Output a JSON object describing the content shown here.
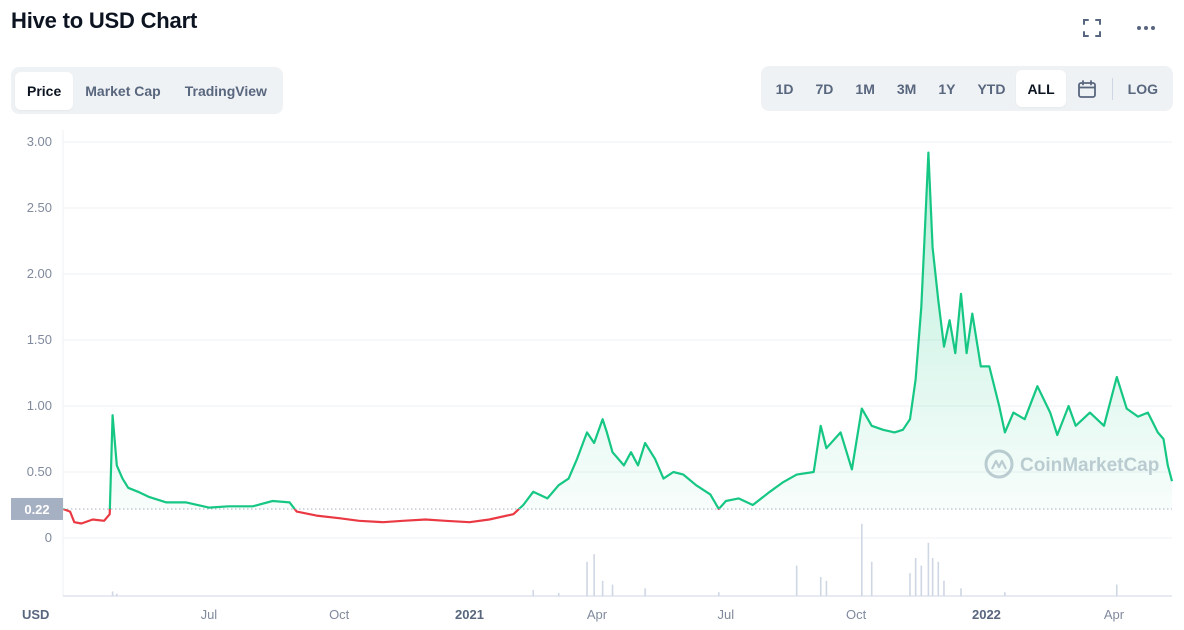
{
  "header": {
    "title": "Hive to USD Chart"
  },
  "icons": {
    "fullscreen": "fullscreen-icon",
    "more": "more-icon",
    "calendar": "calendar-icon",
    "brand": "coinmarketcap-logo-icon"
  },
  "colors": {
    "up": "#16c784",
    "down": "#ea3943",
    "grid": "#eff2f5",
    "text": "#808a9d",
    "bg": "#ffffff",
    "tag": "#a6b0c3"
  },
  "tabs": [
    {
      "label": "Price",
      "active": true
    },
    {
      "label": "Market Cap",
      "active": false
    },
    {
      "label": "TradingView",
      "active": false
    }
  ],
  "ranges": [
    {
      "label": "1D",
      "active": false
    },
    {
      "label": "7D",
      "active": false
    },
    {
      "label": "1M",
      "active": false
    },
    {
      "label": "3M",
      "active": false
    },
    {
      "label": "1Y",
      "active": false
    },
    {
      "label": "YTD",
      "active": false
    },
    {
      "label": "ALL",
      "active": true
    }
  ],
  "scale_toggle": "LOG",
  "chart_data": {
    "type": "area",
    "title": "Hive to USD Chart",
    "xlabel": "",
    "ylabel": "USD",
    "ylim": [
      0,
      3.0
    ],
    "y_ticks": [
      "3.00",
      "2.50",
      "2.00",
      "1.50",
      "1.00",
      "0.50",
      "0"
    ],
    "y_tick_values": [
      3.0,
      2.5,
      2.0,
      1.5,
      1.0,
      0.5,
      0
    ],
    "x_ticks": [
      {
        "label": "Jul",
        "bold": false,
        "date": "2020-07-01"
      },
      {
        "label": "Oct",
        "bold": false,
        "date": "2020-10-01"
      },
      {
        "label": "2021",
        "bold": true,
        "date": "2021-01-01"
      },
      {
        "label": "Apr",
        "bold": false,
        "date": "2021-04-01"
      },
      {
        "label": "Jul",
        "bold": false,
        "date": "2021-07-01"
      },
      {
        "label": "Oct",
        "bold": false,
        "date": "2021-10-01"
      },
      {
        "label": "2022",
        "bold": true,
        "date": "2022-01-01"
      },
      {
        "label": "Apr",
        "bold": false,
        "date": "2022-04-01"
      }
    ],
    "x_range": [
      "2020-03-20",
      "2022-05-12"
    ],
    "baseline": {
      "value": 0.22,
      "label": "0.22"
    },
    "watermark": "CoinMarketCap",
    "series": [
      {
        "type": "line",
        "points": [
          [
            "2020-03-20",
            0.22
          ],
          [
            "2020-03-25",
            0.2
          ],
          [
            "2020-03-28",
            0.12
          ],
          [
            "2020-04-02",
            0.11
          ],
          [
            "2020-04-10",
            0.14
          ],
          [
            "2020-04-18",
            0.13
          ],
          [
            "2020-04-22",
            0.18
          ],
          [
            "2020-04-24",
            0.93
          ],
          [
            "2020-04-27",
            0.55
          ],
          [
            "2020-05-01",
            0.45
          ],
          [
            "2020-05-05",
            0.38
          ],
          [
            "2020-05-12",
            0.35
          ],
          [
            "2020-05-20",
            0.31
          ],
          [
            "2020-06-01",
            0.27
          ],
          [
            "2020-06-15",
            0.27
          ],
          [
            "2020-07-01",
            0.23
          ],
          [
            "2020-07-15",
            0.24
          ],
          [
            "2020-08-01",
            0.24
          ],
          [
            "2020-08-15",
            0.28
          ],
          [
            "2020-08-27",
            0.27
          ],
          [
            "2020-09-01",
            0.2
          ],
          [
            "2020-09-15",
            0.17
          ],
          [
            "2020-10-01",
            0.15
          ],
          [
            "2020-10-15",
            0.13
          ],
          [
            "2020-11-01",
            0.12
          ],
          [
            "2020-11-15",
            0.13
          ],
          [
            "2020-12-01",
            0.14
          ],
          [
            "2020-12-15",
            0.13
          ],
          [
            "2021-01-01",
            0.12
          ],
          [
            "2021-01-15",
            0.14
          ],
          [
            "2021-02-01",
            0.18
          ],
          [
            "2021-02-08",
            0.25
          ],
          [
            "2021-02-15",
            0.35
          ],
          [
            "2021-02-25",
            0.3
          ],
          [
            "2021-03-05",
            0.4
          ],
          [
            "2021-03-12",
            0.45
          ],
          [
            "2021-03-18",
            0.6
          ],
          [
            "2021-03-25",
            0.8
          ],
          [
            "2021-03-30",
            0.72
          ],
          [
            "2021-04-05",
            0.9
          ],
          [
            "2021-04-08",
            0.8
          ],
          [
            "2021-04-12",
            0.65
          ],
          [
            "2021-04-20",
            0.55
          ],
          [
            "2021-04-25",
            0.65
          ],
          [
            "2021-04-30",
            0.55
          ],
          [
            "2021-05-05",
            0.72
          ],
          [
            "2021-05-12",
            0.6
          ],
          [
            "2021-05-18",
            0.45
          ],
          [
            "2021-05-25",
            0.5
          ],
          [
            "2021-06-01",
            0.48
          ],
          [
            "2021-06-10",
            0.4
          ],
          [
            "2021-06-20",
            0.33
          ],
          [
            "2021-06-26",
            0.22
          ],
          [
            "2021-07-01",
            0.28
          ],
          [
            "2021-07-10",
            0.3
          ],
          [
            "2021-07-20",
            0.25
          ],
          [
            "2021-08-01",
            0.35
          ],
          [
            "2021-08-10",
            0.42
          ],
          [
            "2021-08-20",
            0.48
          ],
          [
            "2021-09-01",
            0.5
          ],
          [
            "2021-09-06",
            0.85
          ],
          [
            "2021-09-10",
            0.68
          ],
          [
            "2021-09-20",
            0.8
          ],
          [
            "2021-09-28",
            0.52
          ],
          [
            "2021-10-05",
            0.98
          ],
          [
            "2021-10-12",
            0.85
          ],
          [
            "2021-10-20",
            0.82
          ],
          [
            "2021-10-28",
            0.8
          ],
          [
            "2021-11-03",
            0.82
          ],
          [
            "2021-11-08",
            0.9
          ],
          [
            "2021-11-12",
            1.2
          ],
          [
            "2021-11-16",
            1.75
          ],
          [
            "2021-11-18",
            2.2
          ],
          [
            "2021-11-21",
            2.92
          ],
          [
            "2021-11-24",
            2.2
          ],
          [
            "2021-11-28",
            1.8
          ],
          [
            "2021-12-02",
            1.45
          ],
          [
            "2021-12-06",
            1.65
          ],
          [
            "2021-12-10",
            1.4
          ],
          [
            "2021-12-14",
            1.85
          ],
          [
            "2021-12-18",
            1.4
          ],
          [
            "2021-12-22",
            1.7
          ],
          [
            "2021-12-28",
            1.3
          ],
          [
            "2022-01-03",
            1.3
          ],
          [
            "2022-01-10",
            1.0
          ],
          [
            "2022-01-14",
            0.8
          ],
          [
            "2022-01-20",
            0.95
          ],
          [
            "2022-01-28",
            0.9
          ],
          [
            "2022-02-06",
            1.15
          ],
          [
            "2022-02-15",
            0.95
          ],
          [
            "2022-02-20",
            0.78
          ],
          [
            "2022-02-28",
            1.0
          ],
          [
            "2022-03-05",
            0.85
          ],
          [
            "2022-03-15",
            0.95
          ],
          [
            "2022-03-25",
            0.85
          ],
          [
            "2022-04-03",
            1.22
          ],
          [
            "2022-04-10",
            0.98
          ],
          [
            "2022-04-18",
            0.92
          ],
          [
            "2022-04-25",
            0.95
          ],
          [
            "2022-05-02",
            0.8
          ],
          [
            "2022-05-06",
            0.75
          ],
          [
            "2022-05-09",
            0.55
          ],
          [
            "2022-05-12",
            0.43
          ]
        ]
      },
      {
        "type": "volume",
        "points": [
          [
            "2020-04-24",
            0.06
          ],
          [
            "2020-04-27",
            0.03
          ],
          [
            "2021-02-15",
            0.08
          ],
          [
            "2021-03-05",
            0.04
          ],
          [
            "2021-03-25",
            0.45
          ],
          [
            "2021-03-30",
            0.55
          ],
          [
            "2021-04-05",
            0.2
          ],
          [
            "2021-04-12",
            0.15
          ],
          [
            "2021-05-05",
            0.1
          ],
          [
            "2021-06-26",
            0.05
          ],
          [
            "2021-08-20",
            0.4
          ],
          [
            "2021-09-06",
            0.25
          ],
          [
            "2021-09-10",
            0.2
          ],
          [
            "2021-10-05",
            0.95
          ],
          [
            "2021-10-12",
            0.45
          ],
          [
            "2021-11-08",
            0.3
          ],
          [
            "2021-11-12",
            0.5
          ],
          [
            "2021-11-16",
            0.4
          ],
          [
            "2021-11-21",
            0.7
          ],
          [
            "2021-11-24",
            0.5
          ],
          [
            "2021-11-28",
            0.45
          ],
          [
            "2021-12-02",
            0.2
          ],
          [
            "2021-12-14",
            0.1
          ],
          [
            "2022-01-14",
            0.05
          ],
          [
            "2022-04-03",
            0.15
          ]
        ]
      }
    ]
  }
}
